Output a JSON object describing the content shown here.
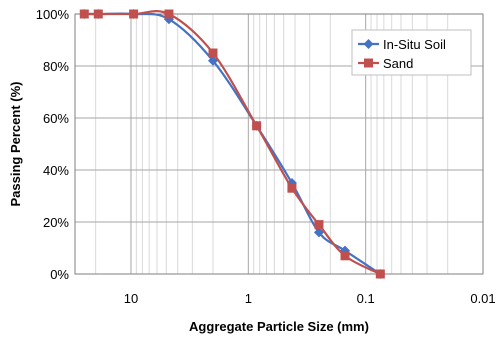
{
  "chart_data": {
    "type": "line",
    "title": "",
    "xlabel": "Aggregate Particle Size (mm)",
    "ylabel": "Passing Percent (%)",
    "x_scale": "log",
    "x_reversed": true,
    "xlim": [
      30,
      0.01
    ],
    "ylim": [
      0,
      100
    ],
    "x_ticks": [
      10,
      1,
      0.1,
      0.01
    ],
    "x_tick_labels": [
      "10",
      "1",
      "0.1",
      "0.01"
    ],
    "y_ticks": [
      0,
      20,
      40,
      60,
      80,
      100
    ],
    "y_tick_labels": [
      "0%",
      "20%",
      "40%",
      "60%",
      "80%",
      "100%"
    ],
    "grid": true,
    "legend_position": "top-right",
    "series": [
      {
        "name": "In-Situ Soil",
        "color": "#4472c4",
        "marker": "diamond",
        "x": [
          25,
          19,
          9.5,
          4.75,
          2.0,
          0.85,
          0.425,
          0.25,
          0.15,
          0.075
        ],
        "y": [
          100,
          100,
          100,
          98,
          82,
          57,
          35,
          16,
          9,
          0
        ]
      },
      {
        "name": "Sand",
        "color": "#c0504d",
        "marker": "square",
        "x": [
          25,
          19,
          9.5,
          4.75,
          2.0,
          0.85,
          0.425,
          0.25,
          0.15,
          0.075
        ],
        "y": [
          100,
          100,
          100,
          100,
          85,
          57,
          33,
          19,
          7,
          0
        ]
      }
    ]
  }
}
